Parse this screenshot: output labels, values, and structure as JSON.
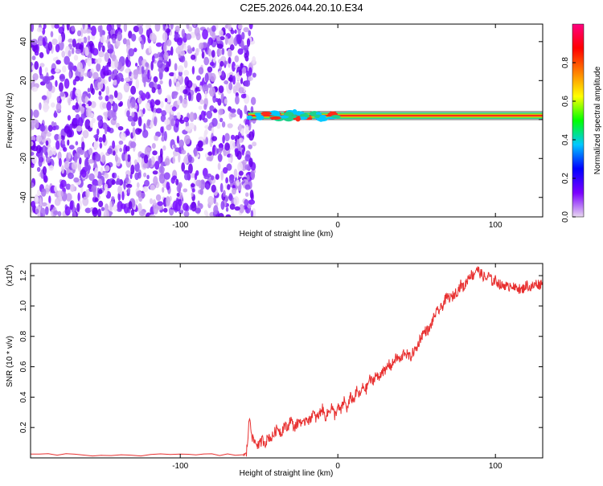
{
  "title": "C2E5.2026.044.20.10.E34",
  "chart_data": [
    {
      "type": "heatmap",
      "xlabel": "Height of straight line (km)",
      "ylabel": "Frequency (Hz)",
      "xlim": [
        -195,
        130
      ],
      "ylim": [
        -50,
        49
      ],
      "xticks": [
        -100,
        0,
        100
      ],
      "xtick_labels": [
        "-100",
        "0",
        "100"
      ],
      "yticks": [
        -40,
        -20,
        0,
        20,
        40
      ],
      "ytick_labels": [
        "-40",
        "-20",
        "0",
        "20",
        "40"
      ],
      "noise_region_x": [
        -195,
        -57
      ],
      "signal_line_freq": 2,
      "signal_start_x": -57,
      "colorbar": {
        "label": "Normalized spectral amplitude",
        "range": [
          0,
          1
        ],
        "ticks": [
          0.0,
          0.2,
          0.4,
          0.6,
          0.8
        ],
        "tick_labels": [
          "0.0",
          "0.2",
          "0.4",
          "0.6",
          "0.8"
        ],
        "colors": [
          "#e8d8f0",
          "#7b00ff",
          "#0000ff",
          "#00c8ff",
          "#00ff00",
          "#ffff00",
          "#ff8000",
          "#ff0000",
          "#ff0080"
        ]
      }
    },
    {
      "type": "line",
      "xlabel": "Height of straight line (km)",
      "ylabel": "SNR (10 * v/v)",
      "multiplier": "(x10",
      "multiplier_exp": "4",
      "multiplier_close": ")",
      "xlim": [
        -195,
        130
      ],
      "ylim": [
        0,
        1.28
      ],
      "xticks": [
        -100,
        0,
        100
      ],
      "xtick_labels": [
        "-100",
        "0",
        "100"
      ],
      "yticks": [
        0.2,
        0.4,
        0.6,
        0.8,
        1.0,
        1.2
      ],
      "ytick_labels": [
        "0.2",
        "0.4",
        "0.6",
        "0.8",
        "1.0",
        "1.2"
      ],
      "series_color": "#e83030",
      "series": [
        {
          "x": [
            -195,
            -150,
            -100,
            -60,
            -58,
            -56,
            -54,
            -52,
            -50,
            -48,
            -46,
            -44,
            -42,
            -40,
            -38,
            -36,
            -34,
            -32,
            -30,
            -28,
            -26,
            -24,
            -22,
            -20,
            -18,
            -16,
            -14,
            -12,
            -10,
            -8,
            -6,
            -4,
            -2,
            0,
            2,
            4,
            6,
            8,
            10,
            12,
            14,
            16,
            18,
            20,
            22,
            24,
            26,
            28,
            30,
            32,
            34,
            36,
            38,
            40,
            42,
            44,
            46,
            48,
            50,
            52,
            54,
            56,
            58,
            60,
            62,
            64,
            66,
            68,
            70,
            72,
            74,
            76,
            78,
            80,
            82,
            84,
            86,
            88,
            90,
            92,
            94,
            96,
            98,
            100,
            102,
            104,
            106,
            108,
            110,
            112,
            114,
            116,
            118,
            120,
            122,
            124,
            126,
            128,
            130
          ],
          "y": [
            0.02,
            0.02,
            0.02,
            0.02,
            0.03,
            0.27,
            0.12,
            0.1,
            0.08,
            0.12,
            0.1,
            0.14,
            0.13,
            0.17,
            0.2,
            0.16,
            0.22,
            0.19,
            0.26,
            0.2,
            0.22,
            0.25,
            0.21,
            0.27,
            0.24,
            0.3,
            0.26,
            0.28,
            0.33,
            0.27,
            0.3,
            0.34,
            0.28,
            0.33,
            0.31,
            0.38,
            0.32,
            0.4,
            0.38,
            0.44,
            0.41,
            0.47,
            0.45,
            0.52,
            0.5,
            0.55,
            0.52,
            0.58,
            0.56,
            0.62,
            0.6,
            0.65,
            0.66,
            0.64,
            0.7,
            0.68,
            0.66,
            0.7,
            0.72,
            0.78,
            0.82,
            0.84,
            0.84,
            0.9,
            0.95,
            0.97,
            0.99,
            1.04,
            1.06,
            1.05,
            1.08,
            1.1,
            1.14,
            1.12,
            1.17,
            1.21,
            1.2,
            1.25,
            1.22,
            1.2,
            1.18,
            1.2,
            1.16,
            1.17,
            1.15,
            1.13,
            1.14,
            1.12,
            1.15,
            1.11,
            1.13,
            1.1,
            1.12,
            1.14,
            1.12,
            1.13,
            1.15,
            1.14,
            1.16
          ]
        }
      ]
    }
  ]
}
